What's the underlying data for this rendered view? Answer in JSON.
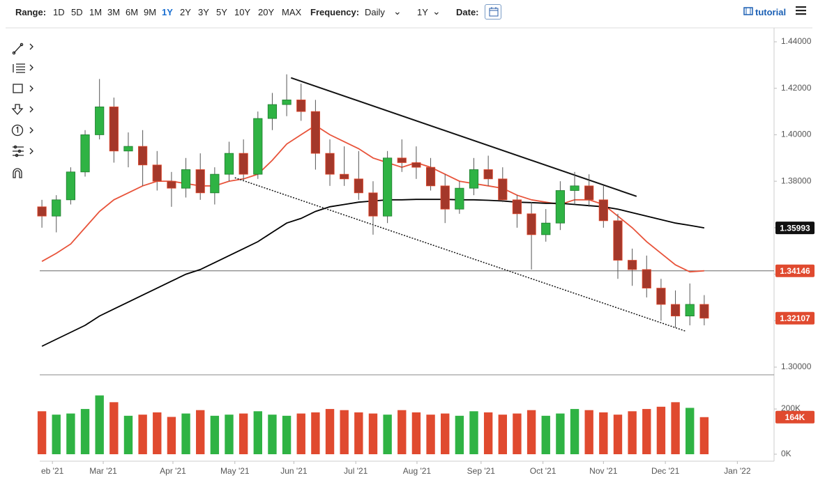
{
  "toolbar": {
    "range_label": "Range:",
    "ranges": [
      "1D",
      "5D",
      "1M",
      "3M",
      "6M",
      "9M",
      "1Y",
      "2Y",
      "3Y",
      "5Y",
      "10Y",
      "20Y",
      "MAX"
    ],
    "active_range": "1Y",
    "frequency_label": "Frequency:",
    "frequency": "Daily",
    "period": "1Y",
    "date_label": "Date:",
    "tutorial": "tutorial"
  },
  "chart_data": {
    "type": "candlestick",
    "categories": [
      null,
      null,
      null,
      null,
      null,
      null,
      null,
      null,
      null,
      null,
      null,
      null,
      null,
      null,
      null,
      null,
      null,
      null,
      null,
      null,
      null,
      null,
      null,
      null,
      null,
      null,
      null,
      null,
      null,
      null,
      null,
      null,
      null,
      null,
      null,
      null,
      null,
      null,
      null,
      null,
      null,
      null,
      null,
      null,
      null,
      null,
      null
    ],
    "open": [
      1.369,
      1.365,
      1.372,
      1.384,
      1.4,
      1.412,
      1.393,
      1.395,
      1.387,
      1.38,
      1.377,
      1.385,
      1.375,
      1.383,
      1.392,
      1.383,
      1.407,
      1.413,
      1.415,
      1.41,
      1.392,
      1.383,
      1.381,
      1.375,
      1.365,
      1.39,
      1.388,
      1.386,
      1.378,
      1.368,
      1.377,
      1.385,
      1.381,
      1.372,
      1.366,
      1.357,
      1.362,
      1.376,
      1.378,
      1.372,
      1.363,
      1.346,
      1.342,
      1.334,
      1.327,
      1.322,
      1.327
    ],
    "high": [
      1.372,
      1.374,
      1.386,
      1.402,
      1.424,
      1.416,
      1.401,
      1.402,
      1.393,
      1.384,
      1.39,
      1.392,
      1.386,
      1.397,
      1.398,
      1.41,
      1.418,
      1.426,
      1.422,
      1.415,
      1.398,
      1.395,
      1.393,
      1.38,
      1.393,
      1.398,
      1.395,
      1.39,
      1.383,
      1.38,
      1.39,
      1.391,
      1.386,
      1.374,
      1.371,
      1.368,
      1.38,
      1.384,
      1.383,
      1.378,
      1.366,
      1.351,
      1.348,
      1.338,
      1.333,
      1.336,
      1.331
    ],
    "low": [
      1.36,
      1.358,
      1.37,
      1.382,
      1.398,
      1.388,
      1.386,
      1.378,
      1.376,
      1.369,
      1.373,
      1.372,
      1.37,
      1.38,
      1.38,
      1.381,
      1.402,
      1.408,
      1.406,
      1.385,
      1.378,
      1.378,
      1.372,
      1.357,
      1.362,
      1.384,
      1.381,
      1.376,
      1.362,
      1.366,
      1.374,
      1.378,
      1.371,
      1.36,
      1.342,
      1.354,
      1.359,
      1.37,
      1.369,
      1.36,
      1.338,
      1.335,
      1.33,
      1.32,
      1.317,
      1.318,
      1.318
    ],
    "close": [
      1.365,
      1.372,
      1.384,
      1.4,
      1.412,
      1.393,
      1.395,
      1.387,
      1.38,
      1.377,
      1.385,
      1.375,
      1.383,
      1.392,
      1.383,
      1.407,
      1.413,
      1.415,
      1.41,
      1.392,
      1.383,
      1.381,
      1.375,
      1.365,
      1.39,
      1.388,
      1.386,
      1.378,
      1.368,
      1.377,
      1.385,
      1.381,
      1.372,
      1.366,
      1.357,
      1.362,
      1.376,
      1.378,
      1.372,
      1.363,
      1.346,
      1.342,
      1.334,
      1.327,
      1.322,
      1.327,
      1.32107
    ],
    "up_color": "#2fb344",
    "down_color": "#a4382a",
    "down_edge": "#e04a2f",
    "moving_averages": [
      {
        "color": "#e8533a",
        "values": [
          1.3455,
          1.349,
          1.353,
          1.36,
          1.367,
          1.372,
          1.375,
          1.378,
          1.38,
          1.38,
          1.379,
          1.378,
          1.378,
          1.38,
          1.381,
          1.383,
          1.389,
          1.396,
          1.4,
          1.404,
          1.4,
          1.397,
          1.394,
          1.39,
          1.388,
          1.386,
          1.388,
          1.386,
          1.383,
          1.38,
          1.379,
          1.378,
          1.377,
          1.374,
          1.372,
          1.371,
          1.37,
          1.372,
          1.372,
          1.37,
          1.365,
          1.36,
          1.354,
          1.349,
          1.344,
          1.341,
          1.34146
        ]
      },
      {
        "color": "#000000",
        "values": [
          1.309,
          1.312,
          1.315,
          1.318,
          1.322,
          1.325,
          1.328,
          1.331,
          1.334,
          1.337,
          1.34,
          1.342,
          1.345,
          1.348,
          1.351,
          1.354,
          1.358,
          1.362,
          1.364,
          1.367,
          1.369,
          1.37,
          1.371,
          1.3715,
          1.372,
          1.372,
          1.3722,
          1.3722,
          1.3722,
          1.372,
          1.372,
          1.3718,
          1.3715,
          1.371,
          1.3708,
          1.3705,
          1.3705,
          1.37,
          1.3695,
          1.369,
          1.368,
          1.3665,
          1.365,
          1.3635,
          1.362,
          1.361,
          1.35993
        ]
      }
    ],
    "trendlines": [
      {
        "x": [
          17.3,
          41.3
        ],
        "y": [
          1.4245,
          1.3735
        ],
        "dashed": false
      },
      {
        "x": [
          13.4,
          44.7
        ],
        "y": [
          1.3815,
          1.3155
        ],
        "dashed": true
      }
    ],
    "hline": 1.34146,
    "ylim": [
      1.297,
      1.446
    ],
    "yticks": [
      {
        "value": 1.3,
        "label": "1.30000"
      },
      {
        "value": 1.32,
        "label": "1.32000"
      },
      {
        "value": 1.34,
        "label": "1.34000"
      },
      {
        "value": 1.36,
        "label": "1.36000"
      },
      {
        "value": 1.38,
        "label": "1.38000"
      },
      {
        "value": 1.4,
        "label": "1.40000"
      },
      {
        "value": 1.42,
        "label": "1.42000"
      },
      {
        "value": 1.44,
        "label": "1.44000"
      }
    ],
    "xlim": [
      -0.15,
      50.85
    ],
    "xticks": [
      {
        "value": 0.73,
        "label": "eb '21"
      },
      {
        "value": 4.26,
        "label": "Mar '21"
      },
      {
        "value": 9.1,
        "label": "Apr '21"
      },
      {
        "value": 13.4,
        "label": "May '21"
      },
      {
        "value": 17.5,
        "label": "Jun '21"
      },
      {
        "value": 21.8,
        "label": "Jul '21"
      },
      {
        "value": 26.05,
        "label": "Aug '21"
      },
      {
        "value": 30.5,
        "label": "Sep '21"
      },
      {
        "value": 34.8,
        "label": "Oct '21"
      },
      {
        "value": 39.0,
        "label": "Nov '21"
      },
      {
        "value": 43.3,
        "label": "Dec '21"
      },
      {
        "value": 48.3,
        "label": "Jan '22"
      }
    ],
    "grid": false,
    "volume": {
      "values": [
        190,
        175,
        180,
        200,
        260,
        230,
        170,
        175,
        185,
        165,
        180,
        195,
        170,
        175,
        180,
        190,
        175,
        170,
        180,
        185,
        200,
        195,
        185,
        180,
        175,
        195,
        185,
        175,
        180,
        170,
        190,
        185,
        175,
        180,
        195,
        170,
        180,
        200,
        195,
        185,
        175,
        190,
        200,
        210,
        230,
        205,
        164
      ],
      "last_label": "164K",
      "ylim": [
        0,
        345
      ],
      "yticks": [
        {
          "value": 0,
          "label": "0K"
        },
        {
          "value": 200,
          "label": "200K"
        }
      ]
    }
  }
}
